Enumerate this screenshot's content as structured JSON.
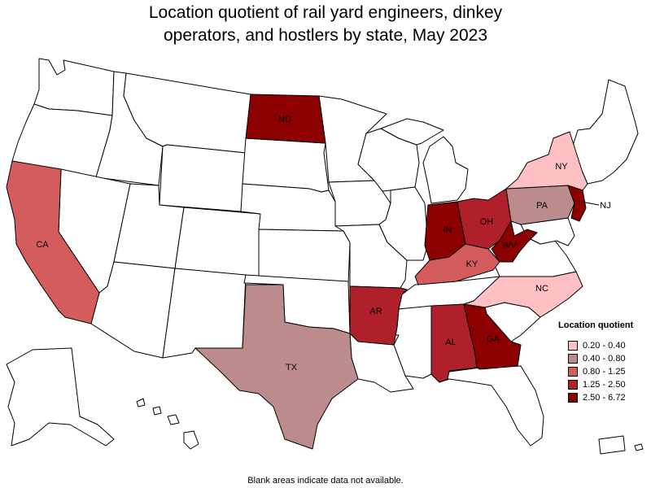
{
  "title_line1": "Location quotient of rail yard engineers, dinkey",
  "title_line2": "operators, and hostlers by state, May 2023",
  "legend": {
    "title": "Location quotient",
    "items": [
      {
        "label": "0.20 - 0.40",
        "color": "#ffc0c4"
      },
      {
        "label": "0.40 - 0.80",
        "color": "#bc8c8c"
      },
      {
        "label": "0.80 - 1.25",
        "color": "#d45c5c"
      },
      {
        "label": "1.25 - 2.50",
        "color": "#b0202a"
      },
      {
        "label": "2.50 - 6.72",
        "color": "#8c0000"
      }
    ]
  },
  "states": [
    {
      "abbr": "ND",
      "bin": 4
    },
    {
      "abbr": "CA",
      "bin": 2
    },
    {
      "abbr": "TX",
      "bin": 1
    },
    {
      "abbr": "AR",
      "bin": 3
    },
    {
      "abbr": "IN",
      "bin": 4
    },
    {
      "abbr": "OH",
      "bin": 3
    },
    {
      "abbr": "KY",
      "bin": 2
    },
    {
      "abbr": "WV",
      "bin": 4
    },
    {
      "abbr": "PA",
      "bin": 1
    },
    {
      "abbr": "NY",
      "bin": 0
    },
    {
      "abbr": "NJ",
      "bin": 4
    },
    {
      "abbr": "NC",
      "bin": 0
    },
    {
      "abbr": "AL",
      "bin": 3
    },
    {
      "abbr": "GA",
      "bin": 4
    }
  ],
  "note": "Blank areas indicate data not available."
}
